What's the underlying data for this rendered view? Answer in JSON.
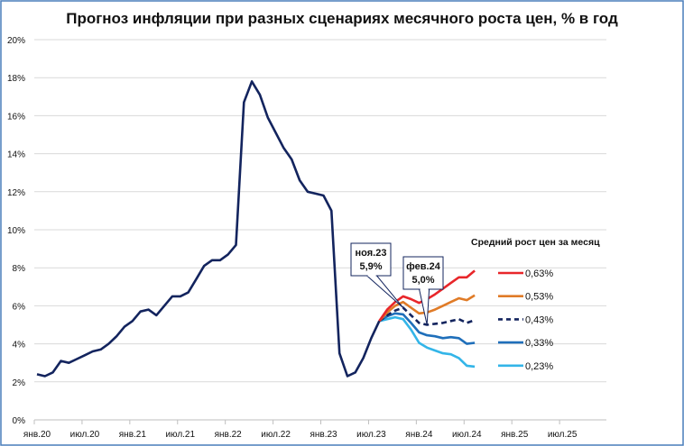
{
  "chart_data": {
    "type": "line",
    "title": "Прогноз инфляции при разных сценариях месячного роста цен, % в год",
    "xlabel": "",
    "ylabel": "",
    "x_ticks": [
      "янв.20",
      "июл.20",
      "янв.21",
      "июл.21",
      "янв.22",
      "июл.22",
      "янв.23",
      "июл.23",
      "янв.24",
      "июл.24",
      "янв.25",
      "июл.25"
    ],
    "y_ticks": [
      "0%",
      "2%",
      "4%",
      "6%",
      "8%",
      "10%",
      "12%",
      "14%",
      "16%",
      "18%",
      "20%"
    ],
    "ylim": [
      0,
      20
    ],
    "xlim": [
      "янв.20",
      "окт.25"
    ],
    "grid": "horizontal",
    "legend_title": "Средний рост цен за месяц",
    "legend_placement": "right",
    "actual": {
      "start": "янв.20",
      "color": "#13245e",
      "values": [
        2.4,
        2.3,
        2.5,
        3.1,
        3.0,
        3.2,
        3.4,
        3.6,
        3.7,
        4.0,
        4.4,
        4.9,
        5.2,
        5.7,
        5.8,
        5.5,
        6.0,
        6.5,
        6.5,
        6.7,
        7.4,
        8.1,
        8.4,
        8.4,
        8.7,
        9.2,
        16.7,
        17.8,
        17.1,
        15.9,
        15.1,
        14.3,
        13.7,
        12.6,
        12.0,
        11.9,
        11.8,
        11.0,
        3.5,
        2.3,
        2.5,
        3.25,
        4.3,
        5.2
      ]
    },
    "series": [
      {
        "name": "0,63%",
        "start": "авг.23",
        "color": "#e8262a",
        "dash": false,
        "values": [
          5.2,
          5.8,
          6.2,
          6.5,
          6.35,
          6.15,
          6.35,
          6.6,
          6.9,
          7.2,
          7.5,
          7.5,
          7.85
        ]
      },
      {
        "name": "0,53%",
        "start": "авг.23",
        "color": "#e07b27",
        "dash": false,
        "values": [
          5.2,
          5.65,
          6.0,
          6.2,
          5.9,
          5.6,
          5.65,
          5.8,
          6.0,
          6.2,
          6.4,
          6.3,
          6.55
        ]
      },
      {
        "name": "0,43%",
        "start": "авг.23",
        "color": "#13245e",
        "dash": true,
        "values": [
          5.2,
          5.5,
          5.75,
          5.9,
          5.5,
          5.1,
          5.0,
          5.05,
          5.1,
          5.2,
          5.3,
          5.1,
          5.25
        ]
      },
      {
        "name": "0,33%",
        "start": "авг.23",
        "color": "#1f6fba",
        "dash": false,
        "values": [
          5.2,
          5.45,
          5.6,
          5.55,
          5.1,
          4.6,
          4.45,
          4.4,
          4.3,
          4.35,
          4.3,
          4.0,
          4.05
        ]
      },
      {
        "name": "0,23%",
        "start": "авг.23",
        "color": "#33b5e8",
        "dash": false,
        "values": [
          5.2,
          5.3,
          5.4,
          5.3,
          4.75,
          4.05,
          3.8,
          3.65,
          3.5,
          3.45,
          3.25,
          2.85,
          2.8
        ]
      }
    ],
    "annotations": [
      {
        "line1": "ноя.23",
        "line2": "5,9%",
        "month": "ноя.23",
        "value": 5.9
      },
      {
        "line1": "фев.24",
        "line2": "5,0%",
        "month": "фев.24",
        "value": 5.0
      }
    ]
  }
}
